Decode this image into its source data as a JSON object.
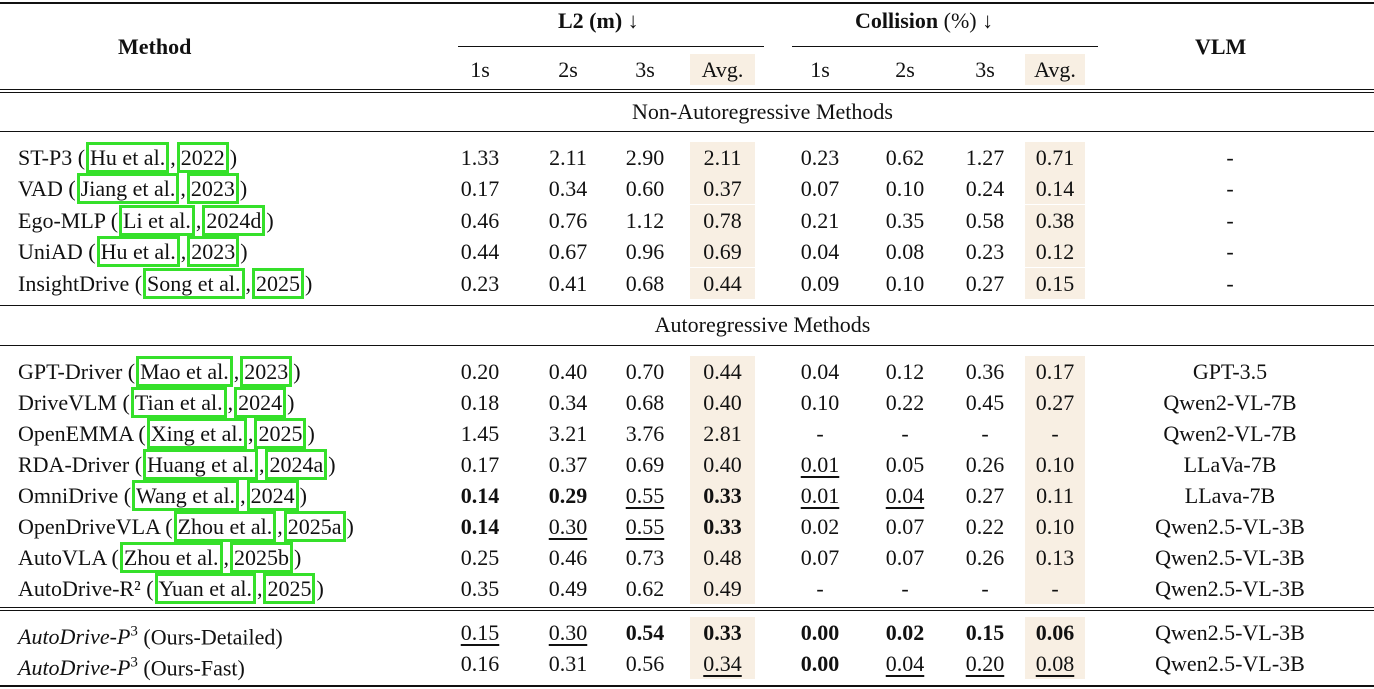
{
  "header": {
    "method": "Method",
    "l2": "L2 (m) ↓",
    "collision_bold": "Collision",
    "collision_rest": "(%) ↓",
    "vlm": "VLM",
    "subcols": [
      "1s",
      "2s",
      "3s",
      "Avg."
    ]
  },
  "sections": [
    {
      "title": "Non-Autoregressive Methods",
      "rows": [
        {
          "name": "ST-P3",
          "author": "Hu et al.",
          "year": "2022",
          "l2": [
            "1.33",
            "2.11",
            "2.90",
            "2.11"
          ],
          "col": [
            "0.23",
            "0.62",
            "1.27",
            "0.71"
          ],
          "vlm": "-",
          "l2s": [
            "",
            "",
            "",
            ""
          ],
          "cols": [
            "",
            "",
            "",
            ""
          ]
        },
        {
          "name": "VAD",
          "author": "Jiang et al.",
          "year": "2023",
          "l2": [
            "0.17",
            "0.34",
            "0.60",
            "0.37"
          ],
          "col": [
            "0.07",
            "0.10",
            "0.24",
            "0.14"
          ],
          "vlm": "-",
          "l2s": [
            "",
            "",
            "",
            ""
          ],
          "cols": [
            "",
            "",
            "",
            ""
          ]
        },
        {
          "name": "Ego-MLP",
          "author": "Li et al.",
          "year": "2024d",
          "l2": [
            "0.46",
            "0.76",
            "1.12",
            "0.78"
          ],
          "col": [
            "0.21",
            "0.35",
            "0.58",
            "0.38"
          ],
          "vlm": "-",
          "l2s": [
            "",
            "",
            "",
            ""
          ],
          "cols": [
            "",
            "",
            "",
            ""
          ]
        },
        {
          "name": "UniAD",
          "author": "Hu et al.",
          "year": "2023",
          "l2": [
            "0.44",
            "0.67",
            "0.96",
            "0.69"
          ],
          "col": [
            "0.04",
            "0.08",
            "0.23",
            "0.12"
          ],
          "vlm": "-",
          "l2s": [
            "",
            "",
            "",
            ""
          ],
          "cols": [
            "",
            "",
            "",
            ""
          ]
        },
        {
          "name": "InsightDrive",
          "author": "Song et al.",
          "year": "2025",
          "l2": [
            "0.23",
            "0.41",
            "0.68",
            "0.44"
          ],
          "col": [
            "0.09",
            "0.10",
            "0.27",
            "0.15"
          ],
          "vlm": "-",
          "l2s": [
            "",
            "",
            "",
            ""
          ],
          "cols": [
            "",
            "",
            "",
            ""
          ]
        }
      ]
    },
    {
      "title": "Autoregressive Methods",
      "rows": [
        {
          "name": "GPT-Driver",
          "author": "Mao et al.",
          "year": "2023",
          "l2": [
            "0.20",
            "0.40",
            "0.70",
            "0.44"
          ],
          "col": [
            "0.04",
            "0.12",
            "0.36",
            "0.17"
          ],
          "vlm": "GPT-3.5",
          "l2s": [
            "",
            "",
            "",
            ""
          ],
          "cols": [
            "",
            "",
            "",
            ""
          ]
        },
        {
          "name": "DriveVLM",
          "author": "Tian et al.",
          "year": "2024",
          "l2": [
            "0.18",
            "0.34",
            "0.68",
            "0.40"
          ],
          "col": [
            "0.10",
            "0.22",
            "0.45",
            "0.27"
          ],
          "vlm": "Qwen2-VL-7B",
          "l2s": [
            "",
            "",
            "",
            ""
          ],
          "cols": [
            "",
            "",
            "",
            ""
          ]
        },
        {
          "name": "OpenEMMA",
          "author": "Xing et al.",
          "year": "2025",
          "l2": [
            "1.45",
            "3.21",
            "3.76",
            "2.81"
          ],
          "col": [
            "-",
            "-",
            "-",
            "-"
          ],
          "vlm": "Qwen2-VL-7B",
          "l2s": [
            "",
            "",
            "",
            ""
          ],
          "cols": [
            "",
            "",
            "",
            ""
          ]
        },
        {
          "name": "RDA-Driver",
          "author": "Huang et al.",
          "year": "2024a",
          "l2": [
            "0.17",
            "0.37",
            "0.69",
            "0.40"
          ],
          "col": [
            "0.01",
            "0.05",
            "0.26",
            "0.10"
          ],
          "vlm": "LLaVa-7B",
          "l2s": [
            "",
            "",
            "",
            ""
          ],
          "cols": [
            "u",
            "",
            "",
            ""
          ]
        },
        {
          "name": "OmniDrive",
          "author": "Wang et al.",
          "year": "2024",
          "l2": [
            "0.14",
            "0.29",
            "0.55",
            "0.33"
          ],
          "col": [
            "0.01",
            "0.04",
            "0.27",
            "0.11"
          ],
          "vlm": "LLava-7B",
          "l2s": [
            "b",
            "b",
            "u",
            "b"
          ],
          "cols": [
            "u",
            "u",
            "",
            ""
          ]
        },
        {
          "name": "OpenDriveVLA",
          "author": "Zhou et al.",
          "year": "2025a",
          "l2": [
            "0.14",
            "0.30",
            "0.55",
            "0.33"
          ],
          "col": [
            "0.02",
            "0.07",
            "0.22",
            "0.10"
          ],
          "vlm": "Qwen2.5-VL-3B",
          "l2s": [
            "b",
            "u",
            "u",
            "b"
          ],
          "cols": [
            "",
            "",
            "",
            ""
          ]
        },
        {
          "name": "AutoVLA",
          "author": "Zhou et al.",
          "year": "2025b",
          "l2": [
            "0.25",
            "0.46",
            "0.73",
            "0.48"
          ],
          "col": [
            "0.07",
            "0.07",
            "0.26",
            "0.13"
          ],
          "vlm": "Qwen2.5-VL-3B",
          "l2s": [
            "",
            "",
            "",
            ""
          ],
          "cols": [
            "",
            "",
            "",
            ""
          ]
        },
        {
          "name": "AutoDrive-R²",
          "author": "Yuan et al.",
          "year": "2025",
          "l2": [
            "0.35",
            "0.49",
            "0.62",
            "0.49"
          ],
          "col": [
            "-",
            "-",
            "-",
            "-"
          ],
          "vlm": "Qwen2.5-VL-3B",
          "l2s": [
            "",
            "",
            "",
            ""
          ],
          "cols": [
            "",
            "",
            "",
            ""
          ]
        }
      ]
    }
  ],
  "ours": [
    {
      "name": "AutoDrive-",
      "sup": "3",
      "p": "P",
      "suffix": "(Ours-Detailed)",
      "l2": [
        "0.15",
        "0.30",
        "0.54",
        "0.33"
      ],
      "col": [
        "0.00",
        "0.02",
        "0.15",
        "0.06"
      ],
      "vlm": "Qwen2.5-VL-3B",
      "l2s": [
        "u",
        "u",
        "b",
        "b"
      ],
      "cols": [
        "b",
        "b",
        "b",
        "b"
      ]
    },
    {
      "name": "AutoDrive-",
      "sup": "3",
      "p": "P",
      "suffix": "(Ours-Fast)",
      "l2": [
        "0.16",
        "0.31",
        "0.56",
        "0.34"
      ],
      "col": [
        "0.00",
        "0.04",
        "0.20",
        "0.08"
      ],
      "vlm": "Qwen2.5-VL-3B",
      "l2s": [
        "",
        "",
        "",
        "u"
      ],
      "cols": [
        "b",
        "u",
        "u",
        "u"
      ]
    }
  ]
}
